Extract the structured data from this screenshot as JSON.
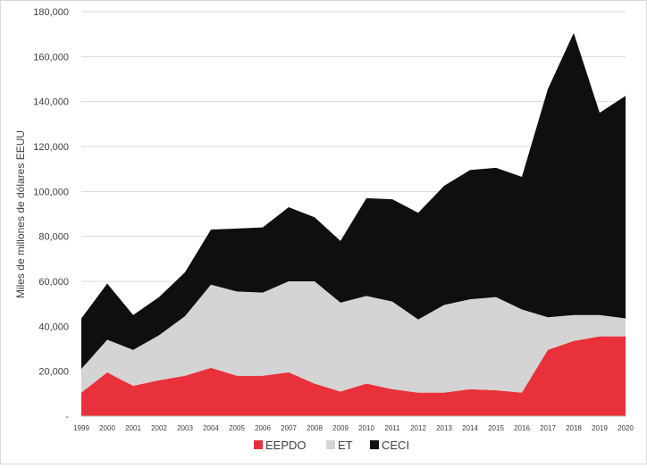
{
  "chart_data": {
    "type": "area",
    "stacked": true,
    "title": "",
    "xlabel": "",
    "ylabel": "Miles de millones de dólares EEUU",
    "ylim": [
      0,
      180000
    ],
    "ytick_labels": [
      "-",
      "20,000",
      "40,000",
      "60,000",
      "80,000",
      "100,000",
      "120,000",
      "140,000",
      "160,000",
      "180,000"
    ],
    "grid": true,
    "legend_position": "bottom",
    "x": [
      "1999",
      "2000",
      "2001",
      "2002",
      "2003",
      "2004",
      "2005",
      "2006",
      "2007",
      "2008",
      "2009",
      "2010",
      "2011",
      "2012",
      "2013",
      "2014",
      "2015",
      "2016",
      "2017",
      "2018",
      "2019",
      "2020"
    ],
    "series": [
      {
        "name": "EEPDO",
        "color": "#e8313a",
        "values": [
          10500,
          19500,
          13500,
          16000,
          18000,
          21500,
          18000,
          18000,
          19500,
          14500,
          11000,
          14500,
          12000,
          10500,
          10500,
          12000,
          11500,
          10500,
          29500,
          33500,
          35500,
          35500
        ]
      },
      {
        "name": "ET",
        "color": "#d4d4d4",
        "values": [
          10500,
          14500,
          16000,
          20000,
          26500,
          37000,
          37500,
          37000,
          40500,
          45500,
          39500,
          39000,
          39000,
          32500,
          39000,
          40000,
          41500,
          37000,
          14500,
          11500,
          9500,
          8000
        ]
      },
      {
        "name": "CECI",
        "color": "#0f0f0f",
        "values": [
          22500,
          25000,
          15500,
          17000,
          19500,
          24500,
          28000,
          29000,
          33000,
          28500,
          27500,
          43500,
          45500,
          47500,
          53000,
          57500,
          57500,
          59000,
          101500,
          125500,
          90000,
          99000
        ]
      }
    ]
  }
}
